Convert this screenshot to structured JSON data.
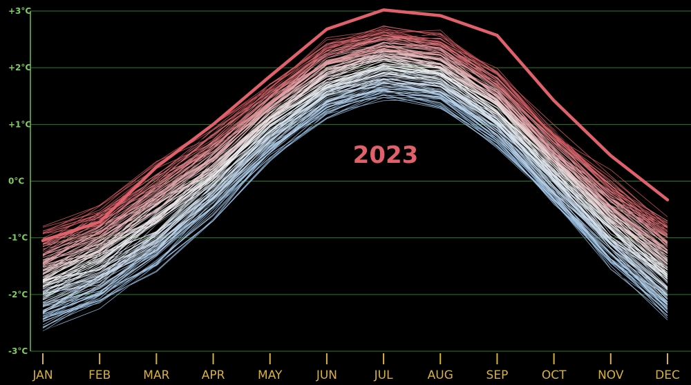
{
  "chart_data": {
    "type": "line",
    "title": "",
    "xlabel": "",
    "ylabel": "",
    "categories": [
      "JAN",
      "FEB",
      "MAR",
      "APR",
      "MAY",
      "JUN",
      "JUL",
      "AUG",
      "SEP",
      "OCT",
      "NOV",
      "DEC"
    ],
    "y_ticks": [
      {
        "value": 3,
        "label": "+3°C"
      },
      {
        "value": 2,
        "label": "+2°C"
      },
      {
        "value": 1,
        "label": "+1°C"
      },
      {
        "value": 0,
        "label": "0°C"
      },
      {
        "value": -1,
        "label": "-1°C"
      },
      {
        "value": -2,
        "label": "-2°C"
      },
      {
        "value": -3,
        "label": "-3°C"
      }
    ],
    "ylim": [
      -3,
      3
    ],
    "grid": true,
    "background": "#000000",
    "colors": {
      "grid": "#2e7d2b",
      "y_tick_label": "#7fce5f",
      "x_tick_label": "#d9b23c",
      "cool": "#a9cbe8",
      "neutral": "#f4f4f4",
      "warm": "#d9565e",
      "highlight": "#e0616b"
    },
    "highlight": {
      "name": "2023",
      "label": "2023",
      "values": [
        -1.05,
        -0.72,
        0.25,
        1.0,
        1.85,
        2.68,
        3.02,
        2.92,
        2.57,
        1.42,
        0.45,
        -0.33
      ]
    },
    "background_series": {
      "description_count": 150,
      "range_min": [
        -2.65,
        -2.25,
        -1.6,
        -0.7,
        0.35,
        1.1,
        1.42,
        1.28,
        0.58,
        -0.45,
        -1.58,
        -2.48
      ],
      "range_max": [
        -0.75,
        -0.3,
        0.4,
        1.05,
        1.85,
        2.6,
        2.82,
        2.72,
        2.05,
        1.05,
        0.22,
        -0.5
      ],
      "colormap": "blue-white-red by year"
    }
  }
}
